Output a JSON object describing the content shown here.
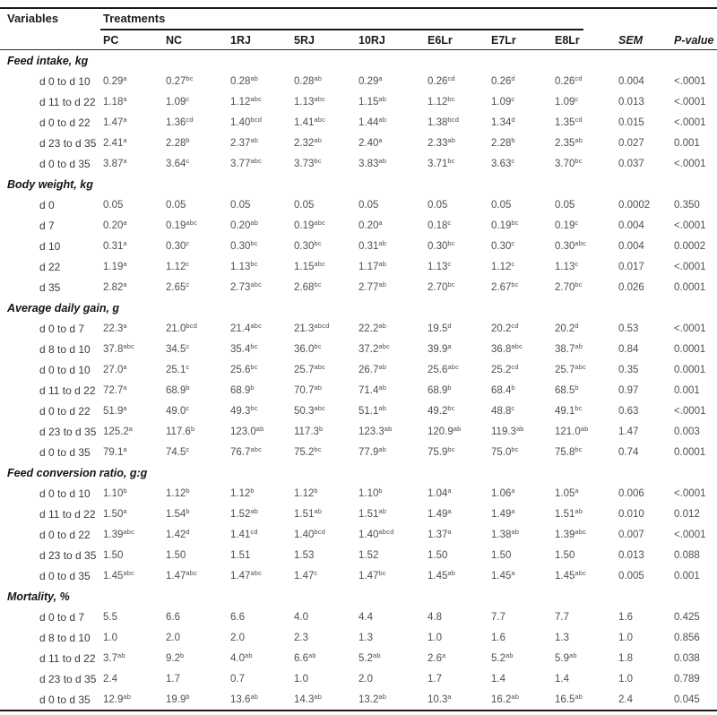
{
  "table": {
    "variables_header": "Variables",
    "treatments_header": "Treatments",
    "sem_header": "SEM",
    "pvalue_header": "P-value",
    "columns": [
      "PC",
      "NC",
      "1RJ",
      "5RJ",
      "10RJ",
      "E6Lr",
      "E7Lr",
      "E8Lr"
    ],
    "sections": [
      {
        "title": "Feed intake, kg",
        "rows": [
          {
            "label": "d 0 to d 10",
            "cells": [
              "0.29^a",
              "0.27^bc",
              "0.28^ab",
              "0.28^ab",
              "0.29^a",
              "0.26^cd",
              "0.26^d",
              "0.26^cd"
            ],
            "sem": "0.004",
            "p": "<.0001"
          },
          {
            "label": "d 11 to d 22",
            "cells": [
              "1.18^a",
              "1.09^c",
              "1.12^abc",
              "1.13^abc",
              "1.15^ab",
              "1.12^bc",
              "1.09^c",
              "1.09^c"
            ],
            "sem": "0.013",
            "p": "<.0001"
          },
          {
            "label": "d 0 to d 22",
            "cells": [
              "1.47^a",
              "1.36^cd",
              "1.40^bcd",
              "1.41^abc",
              "1.44^ab",
              "1.38^bcd",
              "1.34^d",
              "1.35^cd"
            ],
            "sem": "0.015",
            "p": "<.0001"
          },
          {
            "label": "d 23 to d 35",
            "cells": [
              "2.41^a",
              "2.28^b",
              "2.37^ab",
              "2.32^ab",
              "2.40^a",
              "2.33^ab",
              "2.28^b",
              "2.35^ab"
            ],
            "sem": "0.027",
            "p": "0.001"
          },
          {
            "label": "d 0 to d 35",
            "cells": [
              "3.87^a",
              "3.64^c",
              "3.77^abc",
              "3.73^bc",
              "3.83^ab",
              "3.71^bc",
              "3.63^c",
              "3.70^bc"
            ],
            "sem": "0.037",
            "p": "<.0001"
          }
        ]
      },
      {
        "title": "Body weight, kg",
        "rows": [
          {
            "label": "d 0",
            "cells": [
              "0.05",
              "0.05",
              "0.05",
              "0.05",
              "0.05",
              "0.05",
              "0.05",
              "0.05"
            ],
            "sem": "0.0002",
            "p": "0.350"
          },
          {
            "label": "d 7",
            "cells": [
              "0.20^a",
              "0.19^abc",
              "0.20^ab",
              "0.19^abc",
              "0.20^a",
              "0.18^c",
              "0.19^bc",
              "0.19^c"
            ],
            "sem": "0.004",
            "p": "<.0001"
          },
          {
            "label": "d 10",
            "cells": [
              "0.31^a",
              "0.30^c",
              "0.30^bc",
              "0.30^bc",
              "0.31^ab",
              "0.30^bc",
              "0.30^c",
              "0.30^abc"
            ],
            "sem": "0.004",
            "p": "0.0002"
          },
          {
            "label": "d 22",
            "cells": [
              "1.19^a",
              "1.12^c",
              "1.13^bc",
              "1.15^abc",
              "1.17^ab",
              "1.13^c",
              "1.12^c",
              "1.13^c"
            ],
            "sem": "0.017",
            "p": "<.0001"
          },
          {
            "label": "d 35",
            "cells": [
              "2.82^a",
              "2.65^c",
              "2.73^abc",
              "2.68^bc",
              "2.77^ab",
              "2.70^bc",
              "2.67^bc",
              "2.70^bc"
            ],
            "sem": "0.026",
            "p": "0.0001"
          }
        ]
      },
      {
        "title": "Average daily gain, g",
        "rows": [
          {
            "label": "d 0 to d 7",
            "cells": [
              "22.3^a",
              "21.0^bcd",
              "21.4^abc",
              "21.3^abcd",
              "22.2^ab",
              "19.5^d",
              "20.2^cd",
              "20.2^d"
            ],
            "sem": "0.53",
            "p": "<.0001"
          },
          {
            "label": "d 8 to d 10",
            "cells": [
              "37.8^abc",
              "34.5^c",
              "35.4^bc",
              "36.0^bc",
              "37.2^abc",
              "39.9^a",
              "36.8^abc",
              "38.7^ab"
            ],
            "sem": "0.84",
            "p": "0.0001"
          },
          {
            "label": "d 0 to d 10",
            "cells": [
              "27.0^a",
              "25.1^c",
              "25.6^bc",
              "25.7^abc",
              "26.7^ab",
              "25.6^abc",
              "25.2^cd",
              "25.7^abc"
            ],
            "sem": "0.35",
            "p": "0.0001"
          },
          {
            "label": "d 11 to d 22",
            "cells": [
              "72.7^a",
              "68.9^b",
              "68.9^b",
              "70.7^ab",
              "71.4^ab",
              "68.9^b",
              "68.4^b",
              "68.5^b"
            ],
            "sem": "0.97",
            "p": "0.001"
          },
          {
            "label": "d 0 to d 22",
            "cells": [
              "51.9^a",
              "49.0^c",
              "49.3^bc",
              "50.3^abc",
              "51.1^ab",
              "49.2^bc",
              "48.8^c",
              "49.1^bc"
            ],
            "sem": "0.63",
            "p": "<.0001"
          },
          {
            "label": "d 23 to d 35",
            "cells": [
              "125.2^a",
              "117.6^b",
              "123.0^ab",
              "117.3^b",
              "123.3^ab",
              "120.9^ab",
              "119.3^ab",
              "121.0^ab"
            ],
            "sem": "1.47",
            "p": "0.003"
          },
          {
            "label": "d 0 to d 35",
            "cells": [
              "79.1^a",
              "74.5^c",
              "76.7^abc",
              "75.2^bc",
              "77.9^ab",
              "75.9^bc",
              "75.0^bc",
              "75.8^bc"
            ],
            "sem": "0.74",
            "p": "0.0001"
          }
        ]
      },
      {
        "title": "Feed conversion ratio, g:g",
        "rows": [
          {
            "label": "d 0 to d 10",
            "cells": [
              "1.10^b",
              "1.12^b",
              "1.12^b",
              "1.12^b",
              "1.10^b",
              "1.04^a",
              "1.06^a",
              "1.05^a"
            ],
            "sem": "0.006",
            "p": "<.0001"
          },
          {
            "label": "d 11 to d 22",
            "cells": [
              "1.50^a",
              "1.54^b",
              "1.52^ab",
              "1.51^ab",
              "1.51^ab",
              "1.49^a",
              "1.49^a",
              "1.51^ab"
            ],
            "sem": "0.010",
            "p": "0.012"
          },
          {
            "label": "d 0 to d 22",
            "cells": [
              "1.39^abc",
              "1.42^d",
              "1.41^cd",
              "1.40^bcd",
              "1.40^abcd",
              "1.37^a",
              "1.38^ab",
              "1.39^abc"
            ],
            "sem": "0.007",
            "p": "<.0001"
          },
          {
            "label": "d 23 to d 35",
            "cells": [
              "1.50",
              "1.50",
              "1.51",
              "1.53",
              "1.52",
              "1.50",
              "1.50",
              "1.50"
            ],
            "sem": "0.013",
            "p": "0.088"
          },
          {
            "label": "d 0 to d 35",
            "cells": [
              "1.45^abc",
              "1.47^abc",
              "1.47^abc",
              "1.47^c",
              "1.47^bc",
              "1.45^ab",
              "1.45^a",
              "1.45^abc"
            ],
            "sem": "0.005",
            "p": "0.001"
          }
        ]
      },
      {
        "title": "Mortality, %",
        "rows": [
          {
            "label": "d 0 to d 7",
            "cells": [
              "5.5",
              "6.6",
              "6.6",
              "4.0",
              "4.4",
              "4.8",
              "7.7",
              "7.7"
            ],
            "sem": "1.6",
            "p": "0.425"
          },
          {
            "label": "d 8 to d 10",
            "cells": [
              "1.0",
              "2.0",
              "2.0",
              "2.3",
              "1.3",
              "1.0",
              "1.6",
              "1.3"
            ],
            "sem": "1.0",
            "p": "0.856"
          },
          {
            "label": "d 11 to d 22",
            "cells": [
              "3.7^ab",
              "9.2^b",
              "4.0^ab",
              "6.6^ab",
              "5.2^ab",
              "2.6^a",
              "5.2^ab",
              "5.9^ab"
            ],
            "sem": "1.8",
            "p": "0.038"
          },
          {
            "label": "d 23 to d 35",
            "cells": [
              "2.4",
              "1.7",
              "0.7",
              "1.0",
              "2.0",
              "1.7",
              "1.4",
              "1.4"
            ],
            "sem": "1.0",
            "p": "0.789"
          },
          {
            "label": "d 0 to d 35",
            "cells": [
              "12.9^ab",
              "19.9^b",
              "13.6^ab",
              "14.3^ab",
              "13.2^ab",
              "10.3^a",
              "16.2^ab",
              "16.5^ab"
            ],
            "sem": "2.4",
            "p": "0.045"
          }
        ]
      }
    ]
  }
}
